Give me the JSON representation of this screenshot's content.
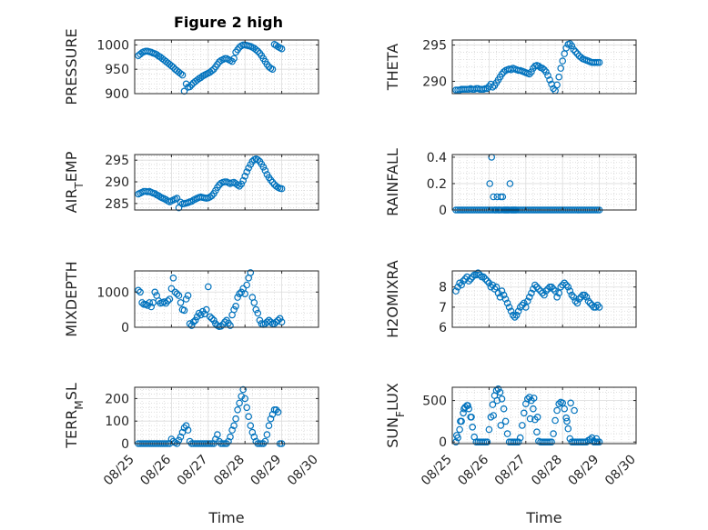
{
  "title": "Figure 2 high",
  "xtick_labels": [
    "08/25",
    "08/26",
    "08/27",
    "08/28",
    "08/29",
    "08/30"
  ],
  "xlabel": "Time",
  "marker_color": "#0072BD",
  "chart_data": [
    {
      "type": "scatter",
      "ylabel": "PRESSURE",
      "ylim": [
        900,
        1010
      ],
      "yticks": [
        900,
        950,
        1000
      ],
      "grid": true,
      "x": [
        0.1,
        0.15,
        0.2,
        0.25,
        0.3,
        0.35,
        0.4,
        0.45,
        0.5,
        0.55,
        0.6,
        0.65,
        0.7,
        0.75,
        0.8,
        0.85,
        0.9,
        0.95,
        1.0,
        1.05,
        1.1,
        1.15,
        1.2,
        1.25,
        1.3,
        1.35,
        1.4,
        1.45,
        1.5,
        1.55,
        1.6,
        1.65,
        1.7,
        1.75,
        1.8,
        1.85,
        1.9,
        1.95,
        2.0,
        2.05,
        2.1,
        2.15,
        2.2,
        2.25,
        2.3,
        2.35,
        2.4,
        2.45,
        2.5,
        2.55,
        2.6,
        2.65,
        2.7,
        2.75,
        2.8,
        2.85,
        2.9,
        2.95,
        3.0,
        3.05,
        3.1,
        3.15,
        3.2,
        3.25,
        3.3,
        3.35,
        3.4,
        3.45,
        3.5,
        3.55,
        3.6,
        3.65,
        3.7,
        3.75,
        3.8,
        3.85,
        3.9,
        3.95,
        4.0
      ],
      "y": [
        978,
        981,
        984,
        986,
        987,
        987,
        986,
        985,
        983,
        982,
        980,
        977,
        975,
        972,
        969,
        966,
        963,
        960,
        957,
        954,
        950,
        947,
        944,
        941,
        938,
        905,
        920,
        913,
        914,
        918,
        922,
        925,
        928,
        931,
        933,
        936,
        938,
        940,
        942,
        944,
        947,
        950,
        955,
        960,
        965,
        968,
        970,
        972,
        972,
        970,
        968,
        966,
        972,
        985,
        990,
        995,
        998,
        1000,
        1000,
        999,
        998,
        997,
        995,
        993,
        990,
        987,
        983,
        978,
        972,
        966,
        960,
        955,
        952,
        950,
        1001,
        999,
        996,
        994,
        992
      ]
    },
    {
      "type": "scatter",
      "ylabel": "THETA",
      "ylim": [
        288.3,
        295.7
      ],
      "yticks": [
        290,
        295
      ],
      "grid": true,
      "x": [
        0.1,
        0.15,
        0.2,
        0.25,
        0.3,
        0.35,
        0.4,
        0.45,
        0.5,
        0.55,
        0.6,
        0.65,
        0.7,
        0.75,
        0.8,
        0.85,
        0.9,
        0.95,
        1.0,
        1.05,
        1.1,
        1.15,
        1.2,
        1.25,
        1.3,
        1.35,
        1.4,
        1.45,
        1.5,
        1.55,
        1.6,
        1.65,
        1.7,
        1.75,
        1.8,
        1.85,
        1.9,
        1.95,
        2.0,
        2.05,
        2.1,
        2.15,
        2.2,
        2.25,
        2.3,
        2.35,
        2.4,
        2.45,
        2.5,
        2.55,
        2.6,
        2.65,
        2.7,
        2.75,
        2.8,
        2.85,
        2.9,
        2.95,
        3.0,
        3.05,
        3.1,
        3.15,
        3.2,
        3.25,
        3.3,
        3.35,
        3.4,
        3.45,
        3.5,
        3.55,
        3.6,
        3.65,
        3.7,
        3.75,
        3.8,
        3.85,
        3.9,
        3.95,
        4.0
      ],
      "y": [
        288.8,
        288.8,
        288.8,
        288.9,
        288.9,
        288.9,
        288.9,
        288.9,
        289.0,
        288.9,
        288.9,
        289.0,
        289.0,
        288.9,
        288.9,
        288.9,
        289.0,
        289.0,
        289.3,
        289.6,
        289.2,
        289.4,
        289.8,
        290.2,
        290.6,
        291.0,
        291.3,
        291.5,
        291.6,
        291.7,
        291.6,
        291.8,
        291.7,
        291.6,
        291.5,
        291.5,
        291.4,
        291.3,
        291.2,
        291.1,
        291.0,
        291.3,
        291.8,
        292.1,
        292.2,
        292.1,
        291.9,
        291.8,
        291.6,
        291.3,
        290.8,
        290.2,
        289.6,
        289.0,
        288.7,
        289.5,
        290.6,
        291.8,
        292.8,
        293.8,
        294.6,
        295.1,
        295.2,
        294.9,
        294.4,
        294.1,
        293.8,
        293.5,
        293.3,
        293.1,
        293.0,
        292.9,
        292.8,
        292.7,
        292.6,
        292.6,
        292.6,
        292.6,
        292.6
      ]
    },
    {
      "type": "scatter",
      "ylabel": "AIR_TEMP",
      "ylim": [
        283.5,
        296.3
      ],
      "yticks": [
        285,
        290,
        295
      ],
      "grid": true,
      "x": [
        0.1,
        0.15,
        0.2,
        0.25,
        0.3,
        0.35,
        0.4,
        0.45,
        0.5,
        0.55,
        0.6,
        0.65,
        0.7,
        0.75,
        0.8,
        0.85,
        0.9,
        0.95,
        1.0,
        1.05,
        1.1,
        1.15,
        1.2,
        1.25,
        1.3,
        1.35,
        1.4,
        1.45,
        1.5,
        1.55,
        1.6,
        1.65,
        1.7,
        1.75,
        1.8,
        1.85,
        1.9,
        1.95,
        2.0,
        2.05,
        2.1,
        2.15,
        2.2,
        2.25,
        2.3,
        2.35,
        2.4,
        2.45,
        2.5,
        2.55,
        2.6,
        2.65,
        2.7,
        2.75,
        2.8,
        2.85,
        2.9,
        2.95,
        3.0,
        3.05,
        3.1,
        3.15,
        3.2,
        3.25,
        3.3,
        3.35,
        3.4,
        3.45,
        3.5,
        3.55,
        3.6,
        3.65,
        3.7,
        3.75,
        3.8,
        3.85,
        3.9,
        3.95,
        4.0
      ],
      "y": [
        287.2,
        287.4,
        287.6,
        287.8,
        287.8,
        287.7,
        287.8,
        287.6,
        287.4,
        287.3,
        287.0,
        286.8,
        286.5,
        286.3,
        286.1,
        285.9,
        285.6,
        285.4,
        285.6,
        285.8,
        286.0,
        286.2,
        284.0,
        285.3,
        284.9,
        285.0,
        285.1,
        285.2,
        285.4,
        285.5,
        285.8,
        286.0,
        286.2,
        286.4,
        286.5,
        286.4,
        286.3,
        286.2,
        286.3,
        286.5,
        286.8,
        287.3,
        288.0,
        288.7,
        289.3,
        289.7,
        289.9,
        290.0,
        290.0,
        289.8,
        289.6,
        289.8,
        289.9,
        289.6,
        289.3,
        289.0,
        289.5,
        290.3,
        291.3,
        292.3,
        293.2,
        294.0,
        294.7,
        295.1,
        295.3,
        295.1,
        294.7,
        294.1,
        293.4,
        292.6,
        291.7,
        291.0,
        290.4,
        289.9,
        289.4,
        289.0,
        288.7,
        288.5,
        288.4
      ]
    },
    {
      "type": "scatter",
      "ylabel": "RAINFALL",
      "ylim": [
        0,
        0.42
      ],
      "yticks": [
        0,
        0.2,
        0.4
      ],
      "grid": true,
      "x": [
        0.1,
        0.15,
        0.2,
        0.25,
        0.3,
        0.35,
        0.4,
        0.45,
        0.5,
        0.55,
        0.6,
        0.65,
        0.7,
        0.75,
        0.8,
        0.85,
        0.9,
        0.95,
        1.0,
        1.05,
        1.1,
        1.15,
        1.2,
        1.25,
        1.3,
        1.35,
        1.4,
        1.45,
        1.5,
        1.55,
        1.6,
        1.65,
        1.7,
        1.75,
        1.8,
        1.85,
        1.9,
        1.95,
        2.0,
        2.05,
        2.1,
        2.15,
        2.2,
        2.25,
        2.3,
        2.35,
        2.4,
        2.45,
        2.5,
        2.55,
        2.6,
        2.65,
        2.7,
        2.75,
        2.8,
        2.85,
        2.9,
        2.95,
        3.0,
        3.05,
        3.1,
        3.15,
        3.2,
        3.25,
        3.3,
        3.35,
        3.4,
        3.45,
        3.5,
        3.55,
        3.6,
        3.65,
        3.7,
        3.75,
        3.8,
        3.85,
        3.9,
        3.95,
        4.0,
        1.02,
        1.07,
        1.12,
        1.17,
        1.22,
        1.27,
        1.32,
        1.37,
        1.42,
        1.47,
        1.52,
        1.57,
        1.62,
        1.67,
        1.72
      ],
      "y": [
        0,
        0,
        0,
        0,
        0,
        0,
        0,
        0,
        0,
        0,
        0,
        0,
        0,
        0,
        0,
        0,
        0,
        0,
        0,
        0,
        0,
        0,
        0,
        0,
        0,
        0,
        0,
        0,
        0,
        0,
        0,
        0,
        0,
        0,
        0,
        0,
        0,
        0,
        0,
        0,
        0,
        0,
        0,
        0,
        0,
        0,
        0,
        0,
        0,
        0,
        0,
        0,
        0,
        0,
        0,
        0,
        0,
        0,
        0,
        0,
        0,
        0,
        0,
        0,
        0,
        0,
        0,
        0,
        0,
        0,
        0,
        0,
        0,
        0,
        0,
        0,
        0,
        0,
        0,
        0.2,
        0.4,
        0.1,
        0,
        0.1,
        0,
        0.1,
        0.1,
        0,
        0,
        0,
        0.2,
        0,
        0,
        0
      ]
    },
    {
      "type": "scatter",
      "ylabel": "MIXDEPTH",
      "ylim": [
        0,
        1600
      ],
      "yticks": [
        0,
        1000
      ],
      "grid": true,
      "x": [
        0.1,
        0.15,
        0.2,
        0.25,
        0.3,
        0.35,
        0.4,
        0.45,
        0.5,
        0.55,
        0.6,
        0.65,
        0.7,
        0.75,
        0.8,
        0.85,
        0.9,
        0.95,
        1.0,
        1.05,
        1.1,
        1.15,
        1.2,
        1.25,
        1.3,
        1.35,
        1.4,
        1.45,
        1.5,
        1.55,
        1.6,
        1.65,
        1.7,
        1.75,
        1.8,
        1.85,
        1.9,
        1.95,
        2.0,
        2.05,
        2.1,
        2.15,
        2.2,
        2.25,
        2.3,
        2.35,
        2.4,
        2.45,
        2.5,
        2.55,
        2.6,
        2.65,
        2.7,
        2.75,
        2.8,
        2.85,
        2.9,
        2.95,
        3.0,
        3.05,
        3.1,
        3.15,
        3.2,
        3.25,
        3.3,
        3.35,
        3.4,
        3.45,
        3.5,
        3.55,
        3.6,
        3.65,
        3.7,
        3.75,
        3.8,
        3.85,
        3.9,
        3.95,
        4.0
      ],
      "y": [
        1050,
        1000,
        700,
        650,
        650,
        620,
        700,
        580,
        700,
        1000,
        900,
        750,
        680,
        700,
        720,
        680,
        750,
        800,
        1100,
        1400,
        1000,
        950,
        900,
        700,
        500,
        480,
        800,
        900,
        100,
        50,
        150,
        200,
        300,
        400,
        350,
        450,
        380,
        500,
        1150,
        300,
        250,
        200,
        100,
        50,
        20,
        30,
        80,
        150,
        200,
        120,
        50,
        350,
        500,
        600,
        850,
        950,
        1000,
        1100,
        950,
        1200,
        1400,
        1550,
        850,
        700,
        500,
        400,
        200,
        100,
        80,
        100,
        150,
        200,
        150,
        100,
        100,
        150,
        200,
        250,
        150
      ]
    },
    {
      "type": "scatter",
      "ylabel": "H2OMIXRA",
      "ylim": [
        6,
        8.8
      ],
      "yticks": [
        6,
        7,
        8
      ],
      "grid": true,
      "x": [
        0.1,
        0.15,
        0.2,
        0.25,
        0.3,
        0.35,
        0.4,
        0.45,
        0.5,
        0.55,
        0.6,
        0.65,
        0.7,
        0.75,
        0.8,
        0.85,
        0.9,
        0.95,
        1.0,
        1.05,
        1.1,
        1.15,
        1.2,
        1.25,
        1.3,
        1.35,
        1.4,
        1.45,
        1.5,
        1.55,
        1.6,
        1.65,
        1.7,
        1.75,
        1.8,
        1.85,
        1.9,
        1.95,
        2.0,
        2.05,
        2.1,
        2.15,
        2.2,
        2.25,
        2.3,
        2.35,
        2.4,
        2.45,
        2.5,
        2.55,
        2.6,
        2.65,
        2.7,
        2.75,
        2.8,
        2.85,
        2.9,
        2.95,
        3.0,
        3.05,
        3.1,
        3.15,
        3.2,
        3.25,
        3.3,
        3.35,
        3.4,
        3.45,
        3.5,
        3.55,
        3.6,
        3.65,
        3.7,
        3.75,
        3.8,
        3.85,
        3.9,
        3.95,
        4.0
      ],
      "y": [
        7.8,
        8.0,
        8.2,
        8.1,
        8.3,
        8.4,
        8.5,
        8.3,
        8.4,
        8.5,
        8.6,
        8.6,
        8.7,
        8.6,
        8.5,
        8.5,
        8.4,
        8.3,
        8.2,
        8.0,
        8.1,
        7.9,
        8.0,
        7.7,
        7.5,
        7.8,
        7.6,
        7.4,
        7.2,
        7.0,
        6.8,
        6.6,
        6.5,
        6.6,
        6.8,
        7.0,
        7.1,
        7.2,
        7.0,
        7.3,
        7.5,
        7.7,
        7.9,
        8.1,
        8.0,
        7.9,
        7.8,
        7.7,
        7.6,
        7.8,
        7.9,
        8.0,
        8.0,
        7.9,
        7.8,
        7.5,
        7.7,
        8.0,
        8.1,
        8.2,
        8.1,
        8.0,
        7.8,
        7.6,
        7.5,
        7.3,
        7.2,
        7.4,
        7.5,
        7.6,
        7.6,
        7.5,
        7.3,
        7.2,
        7.1,
        7.0,
        7.0,
        7.1,
        7.0
      ]
    },
    {
      "type": "scatter",
      "ylabel": "TERR_MSL",
      "ylim": [
        0,
        250
      ],
      "yticks": [
        0,
        100,
        200
      ],
      "grid": true,
      "x": [
        0.1,
        0.15,
        0.2,
        0.25,
        0.3,
        0.35,
        0.4,
        0.45,
        0.5,
        0.55,
        0.6,
        0.65,
        0.7,
        0.75,
        0.8,
        0.85,
        0.9,
        0.95,
        1.0,
        1.05,
        1.1,
        1.15,
        1.2,
        1.25,
        1.3,
        1.35,
        1.4,
        1.45,
        1.5,
        1.55,
        1.6,
        1.65,
        1.7,
        1.75,
        1.8,
        1.85,
        1.9,
        1.95,
        2.0,
        2.05,
        2.1,
        2.15,
        2.2,
        2.25,
        2.3,
        2.35,
        2.4,
        2.45,
        2.5,
        2.55,
        2.6,
        2.65,
        2.7,
        2.75,
        2.8,
        2.85,
        2.9,
        2.95,
        3.0,
        3.05,
        3.1,
        3.15,
        3.2,
        3.25,
        3.3,
        3.35,
        3.4,
        3.45,
        3.5,
        3.55,
        3.6,
        3.65,
        3.7,
        3.75,
        3.8,
        3.85,
        3.9,
        3.95,
        4.0
      ],
      "y": [
        0,
        0,
        0,
        0,
        0,
        0,
        0,
        0,
        0,
        0,
        0,
        0,
        0,
        0,
        0,
        0,
        0,
        0,
        20,
        10,
        5,
        0,
        15,
        30,
        50,
        70,
        80,
        60,
        10,
        0,
        0,
        0,
        0,
        0,
        0,
        0,
        0,
        0,
        0,
        0,
        0,
        0,
        20,
        40,
        10,
        0,
        0,
        0,
        0,
        10,
        30,
        60,
        80,
        110,
        150,
        180,
        210,
        240,
        200,
        160,
        120,
        80,
        50,
        30,
        10,
        0,
        0,
        0,
        0,
        10,
        40,
        80,
        110,
        130,
        150,
        150,
        140,
        0,
        0
      ]
    },
    {
      "type": "scatter",
      "ylabel": "SUN_FLUX",
      "ylim": [
        -20,
        660
      ],
      "yticks": [
        0,
        500
      ],
      "grid": true,
      "x": [
        0.1,
        0.15,
        0.2,
        0.25,
        0.3,
        0.35,
        0.4,
        0.45,
        0.5,
        0.55,
        0.6,
        0.65,
        0.7,
        0.75,
        0.8,
        0.85,
        0.9,
        0.95,
        1.0,
        1.05,
        1.1,
        1.15,
        1.2,
        1.25,
        1.3,
        1.35,
        1.4,
        1.45,
        1.5,
        1.55,
        1.6,
        1.65,
        1.7,
        1.75,
        1.8,
        1.85,
        1.9,
        1.95,
        2.0,
        2.05,
        2.1,
        2.15,
        2.2,
        2.25,
        2.3,
        2.35,
        2.4,
        2.45,
        2.5,
        2.55,
        2.6,
        2.65,
        2.7,
        2.75,
        2.8,
        2.85,
        2.9,
        2.95,
        3.0,
        3.05,
        3.1,
        3.15,
        3.2,
        3.25,
        3.3,
        3.35,
        3.4,
        3.45,
        3.5,
        3.55,
        3.6,
        3.65,
        3.7,
        3.75,
        3.8,
        3.85,
        3.9,
        3.95,
        4.0,
        0.12,
        0.22,
        0.32,
        0.42,
        0.52,
        1.12,
        1.22,
        1.32,
        2.12,
        2.22,
        2.32,
        3.12,
        3.22,
        3.32,
        3.85,
        3.92
      ],
      "y": [
        0,
        50,
        150,
        250,
        350,
        420,
        440,
        400,
        300,
        180,
        60,
        0,
        0,
        0,
        0,
        0,
        0,
        0,
        150,
        300,
        450,
        560,
        620,
        640,
        600,
        520,
        400,
        250,
        100,
        0,
        0,
        0,
        0,
        0,
        0,
        50,
        200,
        350,
        460,
        520,
        540,
        500,
        400,
        270,
        120,
        10,
        0,
        0,
        0,
        0,
        0,
        0,
        0,
        100,
        260,
        380,
        460,
        480,
        470,
        400,
        290,
        160,
        40,
        0,
        0,
        0,
        0,
        0,
        0,
        0,
        0,
        0,
        20,
        30,
        50,
        0,
        0,
        0,
        0,
        80,
        250,
        400,
        440,
        300,
        320,
        500,
        200,
        280,
        530,
        300,
        250,
        470,
        380,
        10,
        40
      ]
    }
  ]
}
